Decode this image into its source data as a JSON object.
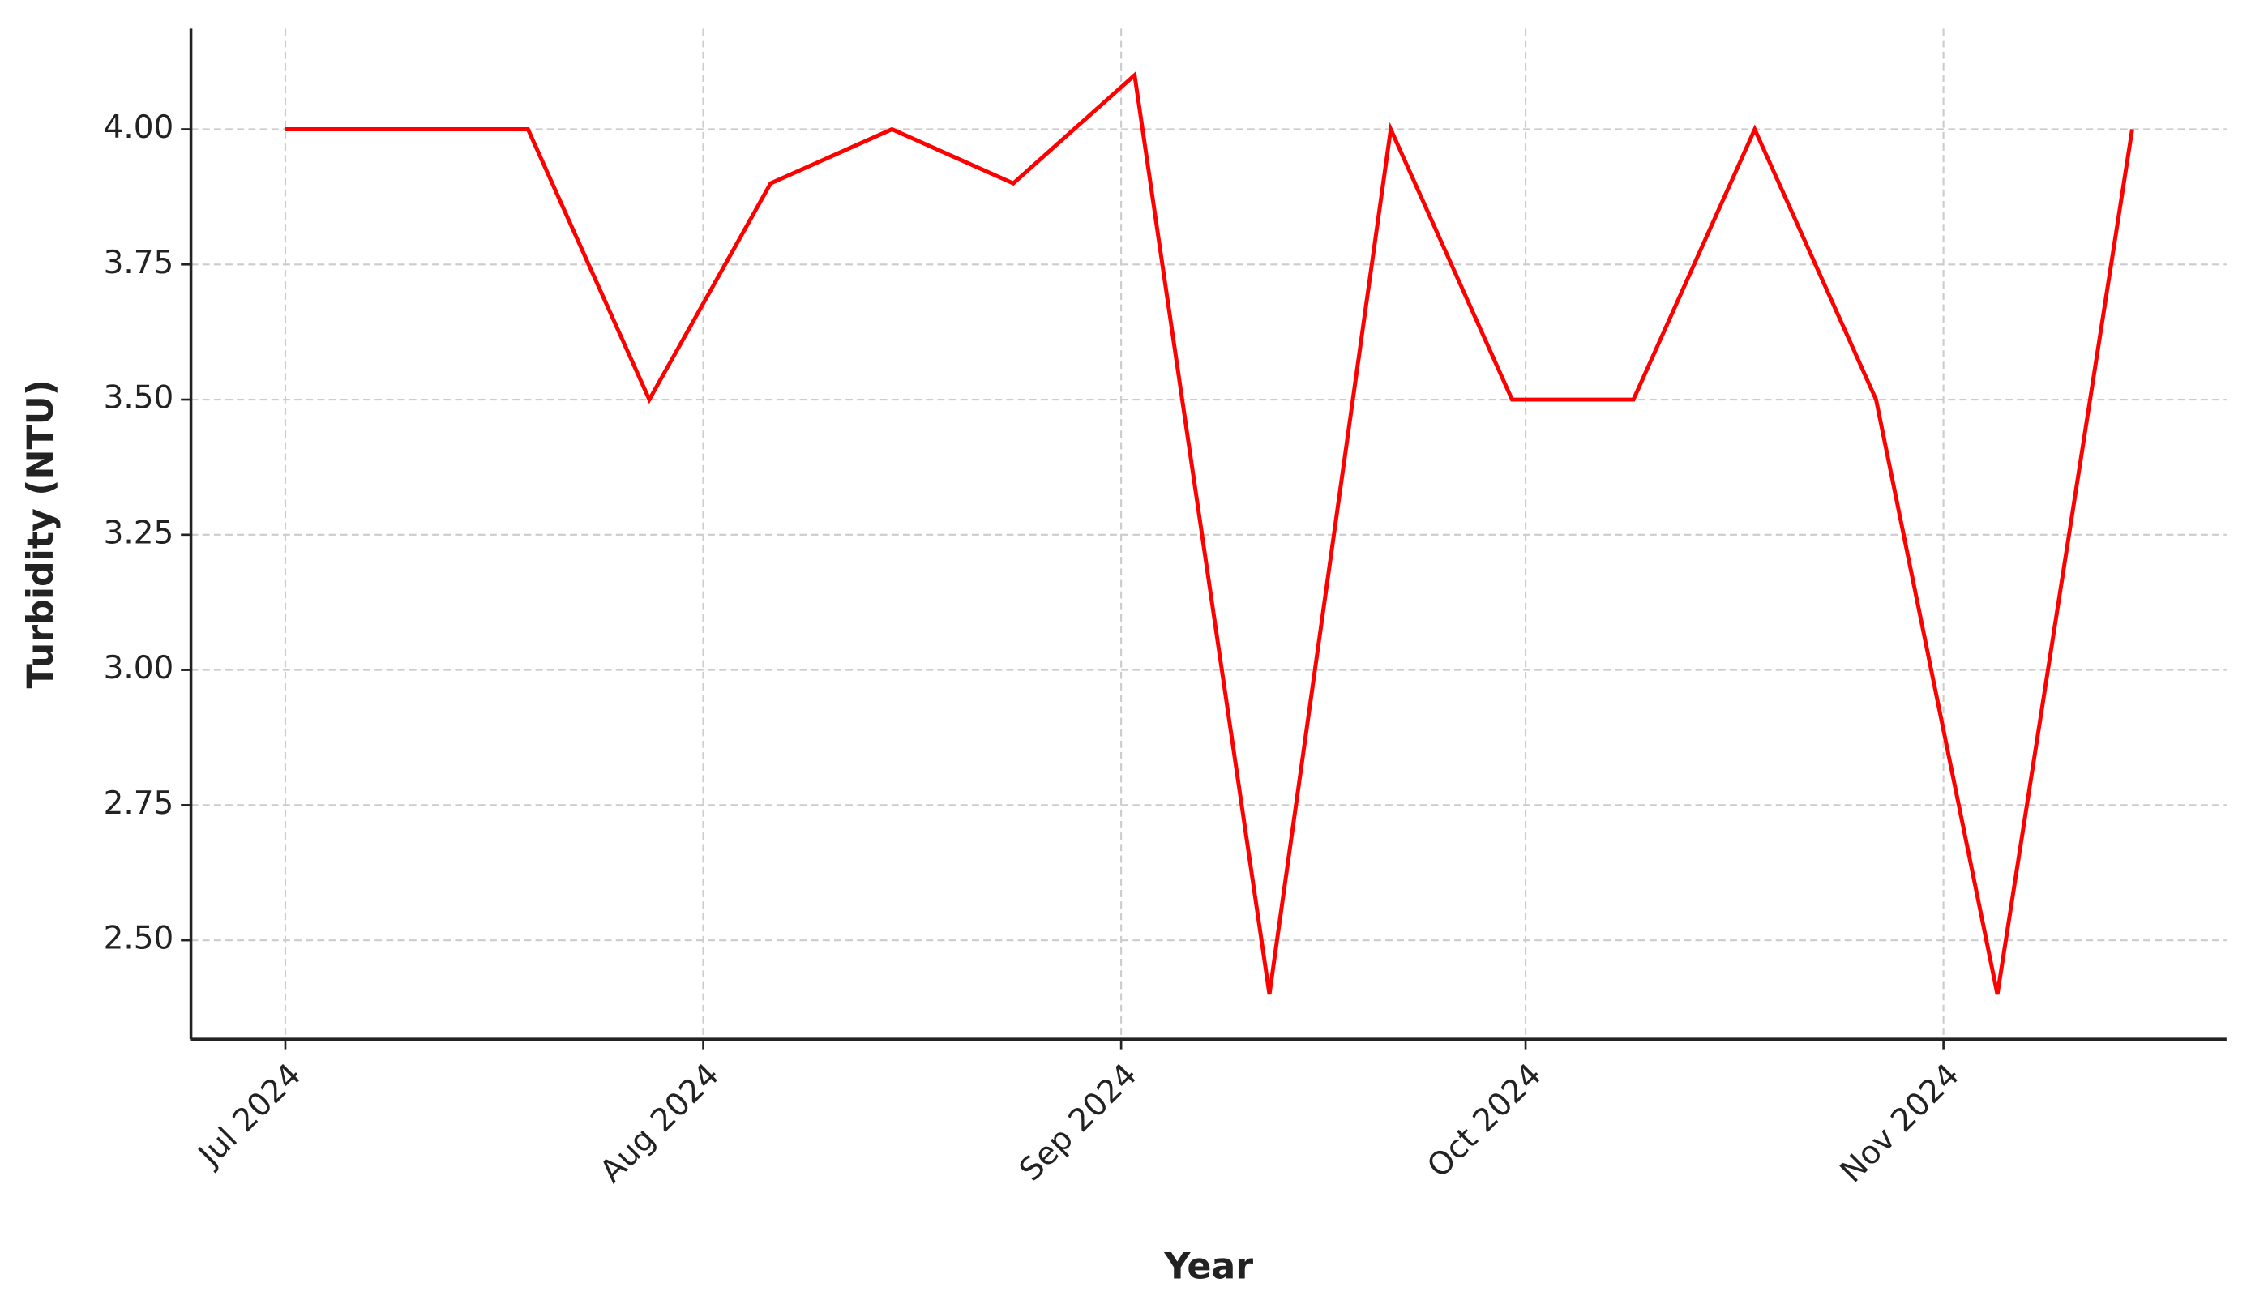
{
  "chart_data": {
    "type": "line",
    "x_label": "Year",
    "y_label": "Turbidity (NTU)",
    "x": [
      "2024-07-01",
      "2024-07-19",
      "2024-07-28",
      "2024-08-06",
      "2024-08-15",
      "2024-08-24",
      "2024-09-02",
      "2024-09-12",
      "2024-09-21",
      "2024-09-30",
      "2024-10-09",
      "2024-10-18",
      "2024-10-27",
      "2024-11-05",
      "2024-11-15"
    ],
    "series": [
      {
        "name": "Turbidity (NTU)",
        "color": "#ff0000",
        "values": [
          4.0,
          4.0,
          3.5,
          3.9,
          4.0,
          3.9,
          4.1,
          2.4,
          4.0,
          3.5,
          3.5,
          4.0,
          3.5,
          2.4,
          4.0
        ]
      }
    ],
    "xlim": [
      "2024-06-24",
      "2024-11-22"
    ],
    "xticks": [
      {
        "value": "2024-07-01",
        "label": "Jul 2024"
      },
      {
        "value": "2024-08-01",
        "label": "Aug 2024"
      },
      {
        "value": "2024-09-01",
        "label": "Sep 2024"
      },
      {
        "value": "2024-10-01",
        "label": "Oct 2024"
      },
      {
        "value": "2024-11-01",
        "label": "Nov 2024"
      }
    ],
    "ylim": [
      2.317,
      4.186
    ],
    "yticks": [
      {
        "value": 2.5,
        "label": "2.50"
      },
      {
        "value": 2.75,
        "label": "2.75"
      },
      {
        "value": 3.0,
        "label": "3.00"
      },
      {
        "value": 3.25,
        "label": "3.25"
      },
      {
        "value": 3.5,
        "label": "3.50"
      },
      {
        "value": 3.75,
        "label": "3.75"
      },
      {
        "value": 4.0,
        "label": "4.00"
      }
    ],
    "grid": true
  }
}
